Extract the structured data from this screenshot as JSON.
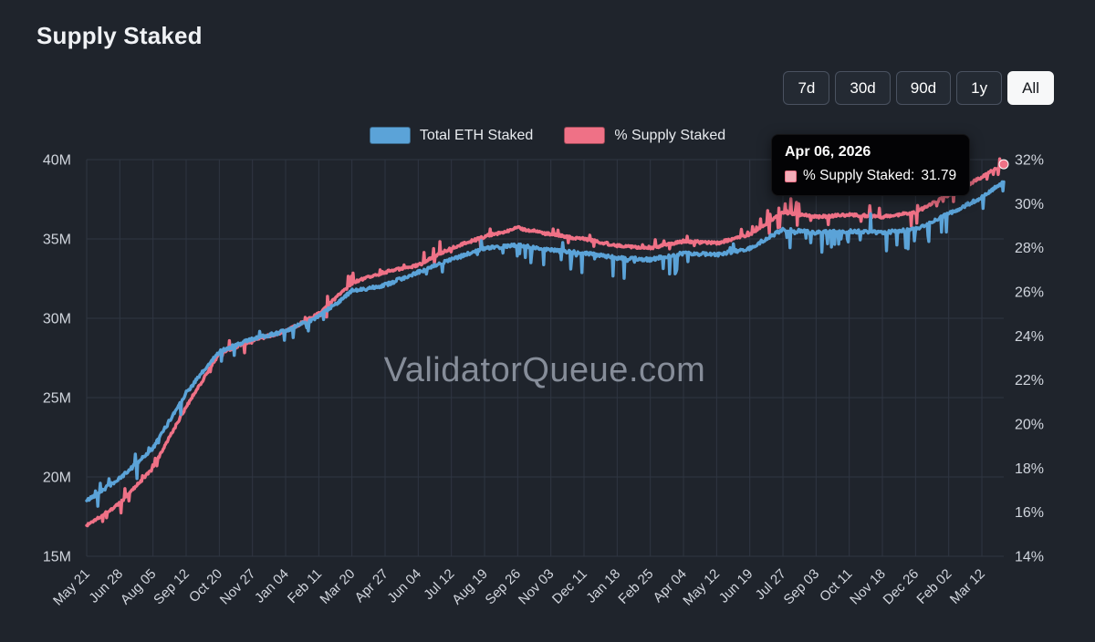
{
  "page": {
    "title": "Supply Staked"
  },
  "time_ranges": [
    {
      "label": "7d",
      "active": false
    },
    {
      "label": "30d",
      "active": false
    },
    {
      "label": "90d",
      "active": false
    },
    {
      "label": "1y",
      "active": false
    },
    {
      "label": "All",
      "active": true
    }
  ],
  "legend": {
    "items": [
      {
        "label": "Total ETH Staked",
        "color": "#5ba3d8"
      },
      {
        "label": "% Supply Staked",
        "color": "#ef7186"
      }
    ]
  },
  "tooltip": {
    "date": "Apr 06, 2026",
    "series_label": "% Supply Staked:",
    "value": "31.79",
    "swatch_fill": "#f3acb8",
    "swatch_border": "#ef7186"
  },
  "watermark": "ValidatorQueue.com",
  "colors": {
    "background": "#1f242c",
    "grid": "#2f3642",
    "axis_text": "#d0d5dd",
    "blue_series": "#5ba3d8",
    "pink_series": "#ef7186"
  },
  "chart_data": {
    "type": "line",
    "title": "Supply Staked",
    "legend_position": "top-center",
    "grid": true,
    "x_tick_labels": [
      "May 21",
      "Jun 28",
      "Aug 05",
      "Sep 12",
      "Oct 20",
      "Nov 27",
      "Jan 04",
      "Feb 11",
      "Mar 20",
      "Apr 27",
      "Jun 04",
      "Jul 12",
      "Aug 19",
      "Sep 26",
      "Nov 03",
      "Dec 11",
      "Jan 18",
      "Feb 25",
      "Apr 04",
      "May 12",
      "Jun 19",
      "Jul 27",
      "Sep 03",
      "Oct 11",
      "Nov 18",
      "Dec 26",
      "Feb 02",
      "Mar 12"
    ],
    "x_tick_step_days": 38,
    "end_point_date": "Apr 06, 2026",
    "x_units": [
      0,
      1,
      2,
      3,
      4,
      5,
      6,
      7,
      8,
      9,
      10,
      11,
      12,
      13,
      14,
      15,
      16,
      17,
      18,
      19,
      20,
      21,
      22,
      23,
      24,
      25,
      26,
      27,
      27.66
    ],
    "left_axis": {
      "min": 15,
      "max": 40,
      "tick_step": 5,
      "tick_labels": [
        "40M",
        "35M",
        "30M",
        "25M",
        "20M",
        "15M"
      ]
    },
    "right_axis": {
      "min": 14,
      "max": 32,
      "tick_step": 2,
      "tick_labels": [
        "32%",
        "30%",
        "28%",
        "26%",
        "24%",
        "22%",
        "20%",
        "18%",
        "16%",
        "14%"
      ]
    },
    "series": [
      {
        "name": "Total ETH Staked",
        "axis": "left",
        "color": "#5ba3d8",
        "units": "million ETH",
        "values": [
          18.5,
          19.9,
          21.8,
          25.3,
          27.9,
          28.7,
          29.2,
          30.1,
          31.7,
          32.1,
          32.9,
          33.7,
          34.4,
          34.6,
          34.3,
          34.1,
          33.8,
          33.7,
          34.1,
          34.0,
          34.4,
          35.6,
          35.4,
          35.5,
          35.4,
          35.6,
          36.6,
          37.6,
          38.6
        ]
      },
      {
        "name": "% Supply Staked",
        "axis": "right",
        "color": "#ef7186",
        "units": "percent",
        "values": [
          15.4,
          16.4,
          18.0,
          20.8,
          23.2,
          23.8,
          24.2,
          25.0,
          26.4,
          26.9,
          27.2,
          28.0,
          28.5,
          28.9,
          28.6,
          28.4,
          28.1,
          28.0,
          28.3,
          28.2,
          28.6,
          29.6,
          29.4,
          29.5,
          29.4,
          29.6,
          30.4,
          31.2,
          31.79
        ]
      }
    ],
    "highlighted_point": {
      "date": "Apr 06, 2026",
      "series": "% Supply Staked",
      "value": 31.79
    }
  }
}
